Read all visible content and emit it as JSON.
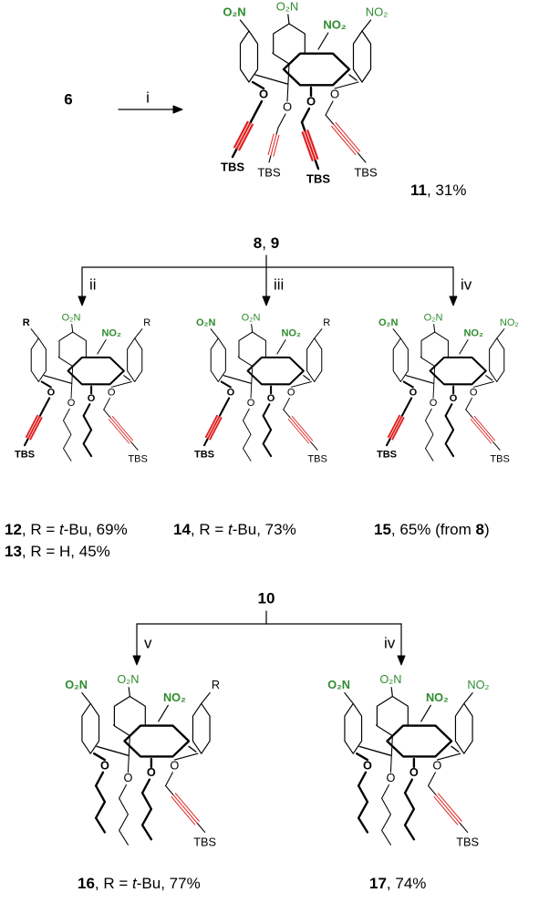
{
  "scheme": {
    "step1": {
      "reactant": "6",
      "reagent": "i"
    },
    "step2": {
      "start": [
        {
          "text": "8",
          "bold": true
        },
        {
          "text": ", "
        },
        {
          "text": "9",
          "bold": true
        }
      ],
      "reagents": [
        "ii",
        "iii",
        "iv"
      ]
    },
    "step3": {
      "start": "10",
      "reagents": [
        "v",
        "iv"
      ]
    },
    "compounds": [
      {
        "subs": [
          "O₂N",
          "O₂N",
          "NO₂",
          "NO₂"
        ],
        "oxygens": [
          "O",
          "O",
          "O",
          "O"
        ],
        "ends": [
          "TBS",
          "TBS",
          "TBS",
          "TBS"
        ],
        "captions": [
          [
            {
              "text": "11",
              "bold": true
            },
            {
              "text": ", 31%"
            }
          ]
        ]
      },
      {
        "subs": [
          "R",
          "O₂N",
          "NO₂",
          "R"
        ],
        "oxygens": [
          "O",
          "O",
          "O",
          "O"
        ],
        "ends": [
          "TBS",
          null,
          null,
          "TBS"
        ],
        "captions": [
          [
            {
              "text": "12",
              "bold": true
            },
            {
              "text": ", R = "
            },
            {
              "text": "t",
              "italic": true
            },
            {
              "text": "-Bu, 69%"
            }
          ],
          [
            {
              "text": "13",
              "bold": true
            },
            {
              "text": ", R = H, 45%"
            }
          ]
        ]
      },
      {
        "subs": [
          "O₂N",
          "O₂N",
          "NO₂",
          "R"
        ],
        "oxygens": [
          "O",
          "O",
          "O",
          "O"
        ],
        "ends": [
          "TBS",
          null,
          null,
          "TBS"
        ],
        "captions": [
          [
            {
              "text": "14",
              "bold": true
            },
            {
              "text": ", R = "
            },
            {
              "text": "t",
              "italic": true
            },
            {
              "text": "-Bu, 73%"
            }
          ]
        ]
      },
      {
        "subs": [
          "O₂N",
          "O₂N",
          "NO₂",
          "NO₂"
        ],
        "oxygens": [
          "O",
          "O",
          "O",
          "O"
        ],
        "ends": [
          "TBS",
          null,
          null,
          "TBS"
        ],
        "captions": [
          [
            {
              "text": "15",
              "bold": true
            },
            {
              "text": ", 65% (from "
            },
            {
              "text": "8",
              "bold": true
            },
            {
              "text": ")"
            }
          ]
        ]
      },
      {
        "subs": [
          "O₂N",
          "O₂N",
          "NO₂",
          "R"
        ],
        "oxygens": [
          "O",
          "O",
          "O",
          "O"
        ],
        "ends": [
          null,
          null,
          null,
          "TBS"
        ],
        "captions": [
          [
            {
              "text": "16",
              "bold": true
            },
            {
              "text": ", R = "
            },
            {
              "text": "t",
              "italic": true
            },
            {
              "text": "-Bu, 77%"
            }
          ]
        ]
      },
      {
        "subs": [
          "O₂N",
          "O₂N",
          "NO₂",
          "NO₂"
        ],
        "oxygens": [
          "O",
          "O",
          "O",
          "O"
        ],
        "ends": [
          null,
          null,
          null,
          "TBS"
        ],
        "captions": [
          [
            {
              "text": "17",
              "bold": true
            },
            {
              "text": ", 74%"
            }
          ]
        ]
      }
    ]
  }
}
